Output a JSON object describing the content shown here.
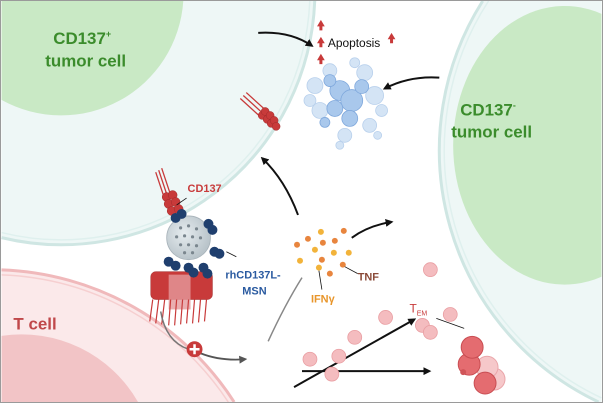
{
  "labels": {
    "cd137_pos_cell": "CD137",
    "cd137_pos_sup": "+",
    "cd137_pos_cell_line2": "tumor cell",
    "cd137_neg_cell": "CD137",
    "cd137_neg_sup": "-",
    "cd137_neg_cell_line2": "tumor cell",
    "t_cell": "T cell",
    "apoptosis": "Apoptosis",
    "cd137": "CD137",
    "nanoparticle_line1": "rhCD137L-",
    "nanoparticle_line2": "MSN",
    "ifng": "IFNγ",
    "tnf": "TNF",
    "tem": "T",
    "tem_sub": "EM"
  },
  "colors": {
    "tumor_green": "#3b8c2c",
    "tumor_nucleus": "#c9e9c5",
    "tumor_cytoplasm": "#eef7f6",
    "t_cell_red": "#c0484a",
    "t_cell_cytoplasm": "#fbe9ea",
    "t_cell_nucleus": "#f2c4c6",
    "cd137_red": "#c83a3a",
    "ligand_blue": "#1f3f6e",
    "msn_label_blue": "#2a5aa0",
    "ifng_orange": "#e8952a",
    "tnf_brown": "#8a4a38",
    "apoptotic_blue": "#9cc0e8"
  }
}
